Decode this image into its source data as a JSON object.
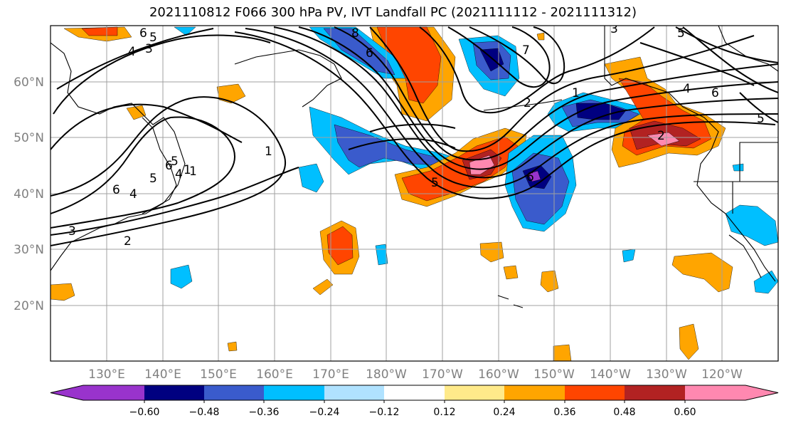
{
  "title": "2021110812 F066 300 hPa PV, IVT Landfall PC (2021111112 - 2021111312)",
  "colors": {
    "purple": "#9933cc",
    "navy": "#000080",
    "blue": "#3a5bcc",
    "deepsky": "#00bfff",
    "lightblue": "#b0e2ff",
    "white": "#ffffff",
    "lightyellow": "#ffea8a",
    "orange": "#ffa500",
    "redorange": "#ff4500",
    "firebrick": "#b22222",
    "pink": "#ff88b0",
    "land": "#000000",
    "grid": "#a0a0a0"
  },
  "lat_labels": [
    "60°N",
    "50°N",
    "40°N",
    "30°N",
    "20°N"
  ],
  "lon_labels": [
    "130°E",
    "140°E",
    "150°E",
    "160°E",
    "170°E",
    "180°W",
    "170°W",
    "160°W",
    "150°W",
    "140°W",
    "130°W",
    "120°W"
  ],
  "colorbar": {
    "colors": [
      "#9933cc",
      "#000080",
      "#3a5bcc",
      "#00bfff",
      "#b0e2ff",
      "#ffffff",
      "#ffea8a",
      "#ffa500",
      "#ff4500",
      "#b22222",
      "#ff88b0"
    ],
    "tick_labels": [
      "−0.60",
      "−0.48",
      "−0.36",
      "−0.24",
      "−0.12",
      "0.12",
      "0.24",
      "0.36",
      "0.48",
      "0.60"
    ]
  },
  "contour_labels": [
    "6",
    "5",
    "4",
    "3",
    "1",
    "6",
    "5",
    "4",
    "3",
    "2",
    "6",
    "5",
    "4",
    "1",
    "1",
    "8",
    "6",
    "7",
    "2",
    "1",
    "5",
    "6",
    "3",
    "5",
    "4",
    "6",
    "2",
    "5"
  ]
}
